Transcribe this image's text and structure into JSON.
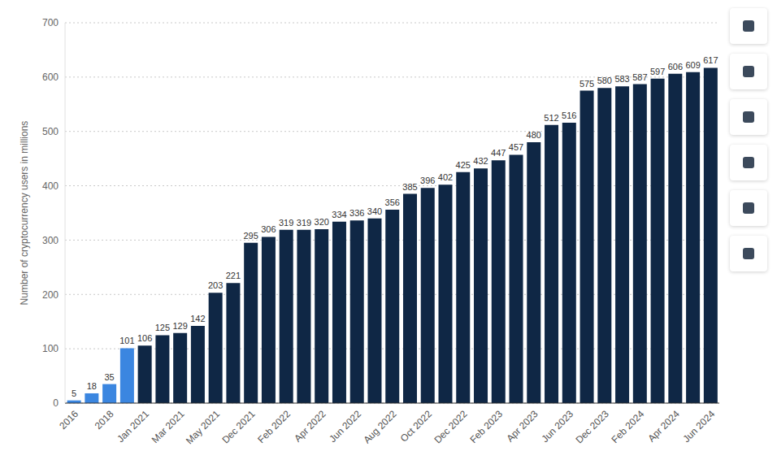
{
  "chart_data": {
    "type": "bar",
    "y_label": "Number of cryptocurrency users in millions",
    "categories": [
      "2016",
      null,
      "2018",
      null,
      "Jan 2021",
      null,
      "Mar 2021",
      null,
      "May 2021",
      null,
      "Dec 2021",
      null,
      "Feb 2022",
      null,
      "Apr 2022",
      null,
      "Jun 2022",
      null,
      "Aug 2022",
      null,
      "Oct 2022",
      null,
      "Dec 2022",
      null,
      "Feb 2023",
      null,
      "Apr 2023",
      null,
      "Jun 2023",
      null,
      "Dec 2023",
      null,
      "Feb 2024",
      null,
      "Apr 2024",
      null,
      "Jun 2024"
    ],
    "values": [
      5,
      18,
      35,
      101,
      106,
      125,
      129,
      142,
      203,
      221,
      295,
      306,
      319,
      319,
      320,
      334,
      336,
      340,
      356,
      385,
      396,
      402,
      425,
      432,
      447,
      457,
      480,
      512,
      516,
      575,
      580,
      583,
      587,
      597,
      606,
      609,
      617
    ],
    "colors": [
      "#3b86e0",
      "#3b86e0",
      "#3b86e0",
      "#3b86e0",
      "#0f2745",
      "#0f2745",
      "#0f2745",
      "#0f2745",
      "#0f2745",
      "#0f2745",
      "#0f2745",
      "#0f2745",
      "#0f2745",
      "#0f2745",
      "#0f2745",
      "#0f2745",
      "#0f2745",
      "#0f2745",
      "#0f2745",
      "#0f2745",
      "#0f2745",
      "#0f2745",
      "#0f2745",
      "#0f2745",
      "#0f2745",
      "#0f2745",
      "#0f2745",
      "#0f2745",
      "#0f2745",
      "#0f2745",
      "#0f2745",
      "#0f2745",
      "#0f2745",
      "#0f2745",
      "#0f2745",
      "#0f2745",
      "#0f2745"
    ],
    "ylim": [
      0,
      700
    ],
    "yticks": [
      0,
      100,
      200,
      300,
      400,
      500,
      600,
      700
    ],
    "grid": true,
    "data_labels": true
  }
}
